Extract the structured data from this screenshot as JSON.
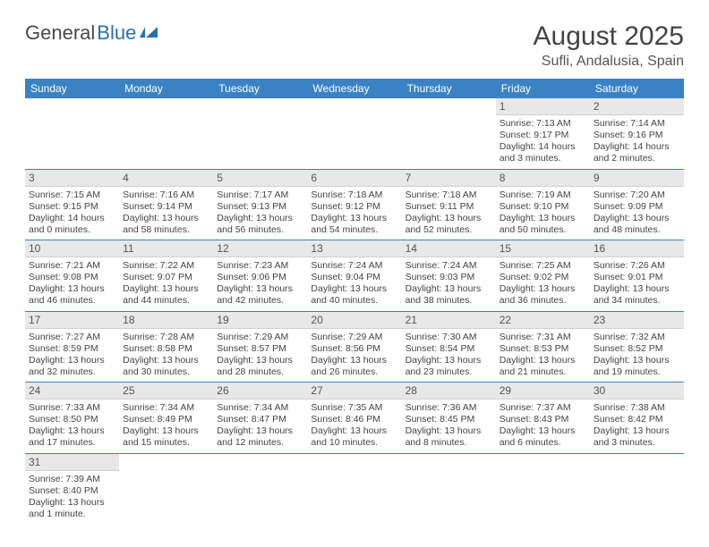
{
  "logo": {
    "text1": "General",
    "text2": "Blue"
  },
  "title": "August 2025",
  "location": "Sufli, Andalusia, Spain",
  "colors": {
    "header_bg": "#3b82c4",
    "header_fg": "#ffffff",
    "daynum_bg": "#e8e8e8",
    "row_border": "#3b82c4",
    "logo_blue": "#2a6fb5"
  },
  "weekdays": [
    "Sunday",
    "Monday",
    "Tuesday",
    "Wednesday",
    "Thursday",
    "Friday",
    "Saturday"
  ],
  "weeks": [
    [
      null,
      null,
      null,
      null,
      null,
      {
        "n": "1",
        "sr": "Sunrise: 7:13 AM",
        "ss": "Sunset: 9:17 PM",
        "d1": "Daylight: 14 hours",
        "d2": "and 3 minutes."
      },
      {
        "n": "2",
        "sr": "Sunrise: 7:14 AM",
        "ss": "Sunset: 9:16 PM",
        "d1": "Daylight: 14 hours",
        "d2": "and 2 minutes."
      }
    ],
    [
      {
        "n": "3",
        "sr": "Sunrise: 7:15 AM",
        "ss": "Sunset: 9:15 PM",
        "d1": "Daylight: 14 hours",
        "d2": "and 0 minutes."
      },
      {
        "n": "4",
        "sr": "Sunrise: 7:16 AM",
        "ss": "Sunset: 9:14 PM",
        "d1": "Daylight: 13 hours",
        "d2": "and 58 minutes."
      },
      {
        "n": "5",
        "sr": "Sunrise: 7:17 AM",
        "ss": "Sunset: 9:13 PM",
        "d1": "Daylight: 13 hours",
        "d2": "and 56 minutes."
      },
      {
        "n": "6",
        "sr": "Sunrise: 7:18 AM",
        "ss": "Sunset: 9:12 PM",
        "d1": "Daylight: 13 hours",
        "d2": "and 54 minutes."
      },
      {
        "n": "7",
        "sr": "Sunrise: 7:18 AM",
        "ss": "Sunset: 9:11 PM",
        "d1": "Daylight: 13 hours",
        "d2": "and 52 minutes."
      },
      {
        "n": "8",
        "sr": "Sunrise: 7:19 AM",
        "ss": "Sunset: 9:10 PM",
        "d1": "Daylight: 13 hours",
        "d2": "and 50 minutes."
      },
      {
        "n": "9",
        "sr": "Sunrise: 7:20 AM",
        "ss": "Sunset: 9:09 PM",
        "d1": "Daylight: 13 hours",
        "d2": "and 48 minutes."
      }
    ],
    [
      {
        "n": "10",
        "sr": "Sunrise: 7:21 AM",
        "ss": "Sunset: 9:08 PM",
        "d1": "Daylight: 13 hours",
        "d2": "and 46 minutes."
      },
      {
        "n": "11",
        "sr": "Sunrise: 7:22 AM",
        "ss": "Sunset: 9:07 PM",
        "d1": "Daylight: 13 hours",
        "d2": "and 44 minutes."
      },
      {
        "n": "12",
        "sr": "Sunrise: 7:23 AM",
        "ss": "Sunset: 9:06 PM",
        "d1": "Daylight: 13 hours",
        "d2": "and 42 minutes."
      },
      {
        "n": "13",
        "sr": "Sunrise: 7:24 AM",
        "ss": "Sunset: 9:04 PM",
        "d1": "Daylight: 13 hours",
        "d2": "and 40 minutes."
      },
      {
        "n": "14",
        "sr": "Sunrise: 7:24 AM",
        "ss": "Sunset: 9:03 PM",
        "d1": "Daylight: 13 hours",
        "d2": "and 38 minutes."
      },
      {
        "n": "15",
        "sr": "Sunrise: 7:25 AM",
        "ss": "Sunset: 9:02 PM",
        "d1": "Daylight: 13 hours",
        "d2": "and 36 minutes."
      },
      {
        "n": "16",
        "sr": "Sunrise: 7:26 AM",
        "ss": "Sunset: 9:01 PM",
        "d1": "Daylight: 13 hours",
        "d2": "and 34 minutes."
      }
    ],
    [
      {
        "n": "17",
        "sr": "Sunrise: 7:27 AM",
        "ss": "Sunset: 8:59 PM",
        "d1": "Daylight: 13 hours",
        "d2": "and 32 minutes."
      },
      {
        "n": "18",
        "sr": "Sunrise: 7:28 AM",
        "ss": "Sunset: 8:58 PM",
        "d1": "Daylight: 13 hours",
        "d2": "and 30 minutes."
      },
      {
        "n": "19",
        "sr": "Sunrise: 7:29 AM",
        "ss": "Sunset: 8:57 PM",
        "d1": "Daylight: 13 hours",
        "d2": "and 28 minutes."
      },
      {
        "n": "20",
        "sr": "Sunrise: 7:29 AM",
        "ss": "Sunset: 8:56 PM",
        "d1": "Daylight: 13 hours",
        "d2": "and 26 minutes."
      },
      {
        "n": "21",
        "sr": "Sunrise: 7:30 AM",
        "ss": "Sunset: 8:54 PM",
        "d1": "Daylight: 13 hours",
        "d2": "and 23 minutes."
      },
      {
        "n": "22",
        "sr": "Sunrise: 7:31 AM",
        "ss": "Sunset: 8:53 PM",
        "d1": "Daylight: 13 hours",
        "d2": "and 21 minutes."
      },
      {
        "n": "23",
        "sr": "Sunrise: 7:32 AM",
        "ss": "Sunset: 8:52 PM",
        "d1": "Daylight: 13 hours",
        "d2": "and 19 minutes."
      }
    ],
    [
      {
        "n": "24",
        "sr": "Sunrise: 7:33 AM",
        "ss": "Sunset: 8:50 PM",
        "d1": "Daylight: 13 hours",
        "d2": "and 17 minutes."
      },
      {
        "n": "25",
        "sr": "Sunrise: 7:34 AM",
        "ss": "Sunset: 8:49 PM",
        "d1": "Daylight: 13 hours",
        "d2": "and 15 minutes."
      },
      {
        "n": "26",
        "sr": "Sunrise: 7:34 AM",
        "ss": "Sunset: 8:47 PM",
        "d1": "Daylight: 13 hours",
        "d2": "and 12 minutes."
      },
      {
        "n": "27",
        "sr": "Sunrise: 7:35 AM",
        "ss": "Sunset: 8:46 PM",
        "d1": "Daylight: 13 hours",
        "d2": "and 10 minutes."
      },
      {
        "n": "28",
        "sr": "Sunrise: 7:36 AM",
        "ss": "Sunset: 8:45 PM",
        "d1": "Daylight: 13 hours",
        "d2": "and 8 minutes."
      },
      {
        "n": "29",
        "sr": "Sunrise: 7:37 AM",
        "ss": "Sunset: 8:43 PM",
        "d1": "Daylight: 13 hours",
        "d2": "and 6 minutes."
      },
      {
        "n": "30",
        "sr": "Sunrise: 7:38 AM",
        "ss": "Sunset: 8:42 PM",
        "d1": "Daylight: 13 hours",
        "d2": "and 3 minutes."
      }
    ],
    [
      {
        "n": "31",
        "sr": "Sunrise: 7:39 AM",
        "ss": "Sunset: 8:40 PM",
        "d1": "Daylight: 13 hours",
        "d2": "and 1 minute."
      },
      null,
      null,
      null,
      null,
      null,
      null
    ]
  ]
}
